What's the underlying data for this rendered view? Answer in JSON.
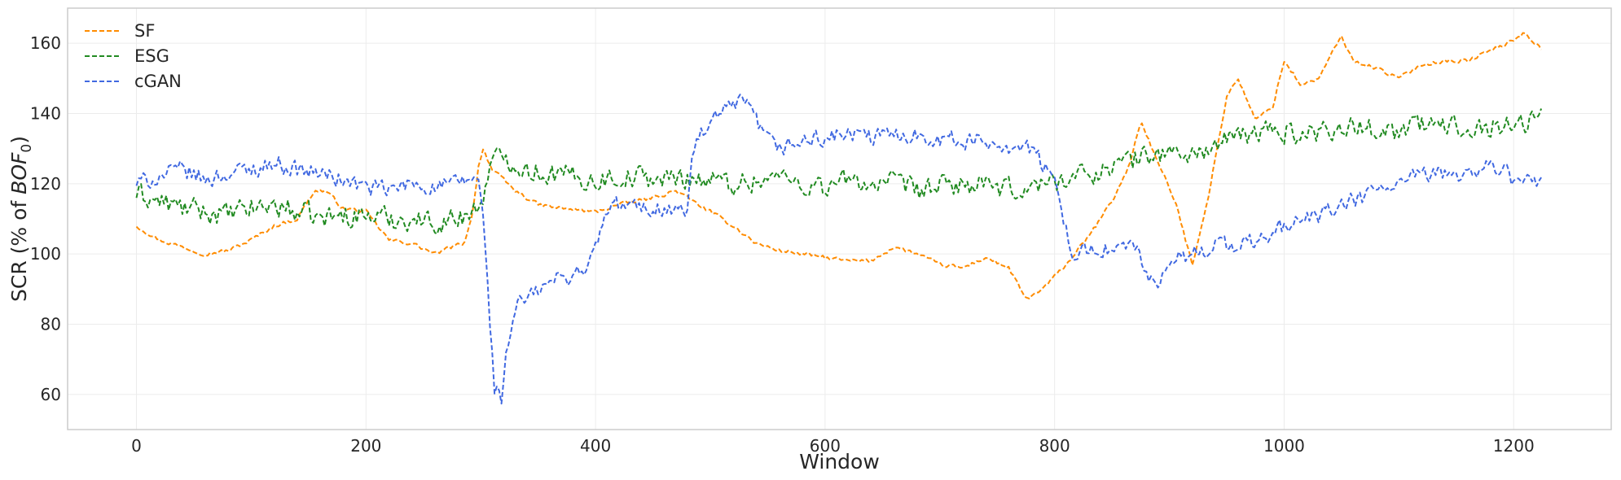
{
  "chart_data": {
    "type": "line",
    "title": "",
    "xlabel": "Window",
    "ylabel_parts": {
      "prefix": "SCR (% of ",
      "italic": "BOF",
      "subscript": "0",
      "suffix": ")"
    },
    "xlim": [
      -60,
      1285
    ],
    "ylim": [
      50,
      170
    ],
    "xticks": [
      0,
      200,
      400,
      600,
      800,
      1000,
      1200
    ],
    "yticks": [
      60,
      80,
      100,
      120,
      140,
      160
    ],
    "grid": true,
    "legend_position": "upper-left",
    "line_style": "dashed",
    "series": [
      {
        "name": "SF",
        "color": "#ff8c00",
        "x": [
          0,
          20,
          40,
          60,
          80,
          100,
          120,
          140,
          155,
          165,
          180,
          200,
          220,
          240,
          260,
          275,
          285,
          292,
          298,
          302,
          310,
          330,
          350,
          370,
          400,
          420,
          450,
          470,
          500,
          520,
          540,
          560,
          600,
          620,
          640,
          660,
          680,
          700,
          720,
          740,
          760,
          775,
          790,
          810,
          830,
          850,
          865,
          875,
          890,
          905,
          920,
          935,
          950,
          960,
          975,
          990,
          1000,
          1015,
          1030,
          1050,
          1060,
          1080,
          1100,
          1120,
          1140,
          1160,
          1180,
          1195,
          1210,
          1225
        ],
        "y": [
          108,
          104,
          102,
          100,
          101,
          104,
          108,
          110,
          118,
          118,
          113,
          112,
          104,
          103,
          100,
          102,
          103,
          110,
          125,
          130,
          124,
          118,
          114,
          113,
          112,
          114,
          116,
          118,
          112,
          108,
          103,
          101,
          99,
          98,
          98,
          102,
          100,
          97,
          96,
          99,
          96,
          87,
          90,
          97,
          105,
          115,
          125,
          138,
          126,
          115,
          97,
          118,
          145,
          150,
          138,
          142,
          155,
          148,
          150,
          162,
          155,
          153,
          150,
          154,
          155,
          155,
          158,
          160,
          163,
          158
        ]
      },
      {
        "name": "ESG",
        "color": "#228b22",
        "x": [
          0,
          20,
          40,
          60,
          80,
          100,
          120,
          140,
          160,
          180,
          200,
          220,
          240,
          260,
          280,
          290,
          298,
          305,
          310,
          320,
          340,
          360,
          380,
          400,
          420,
          440,
          460,
          480,
          500,
          520,
          540,
          560,
          580,
          600,
          620,
          640,
          660,
          680,
          700,
          720,
          740,
          760,
          780,
          800,
          820,
          840,
          860,
          880,
          900,
          920,
          940,
          960,
          980,
          1000,
          1020,
          1040,
          1060,
          1080,
          1100,
          1120,
          1140,
          1160,
          1180,
          1200,
          1225
        ],
        "y": [
          117,
          115,
          113,
          112,
          111,
          113,
          114,
          112,
          110,
          111,
          111,
          110,
          110,
          109,
          110,
          112,
          113,
          120,
          126,
          128,
          124,
          123,
          122,
          121,
          122,
          122,
          121,
          122,
          121,
          120,
          121,
          122,
          120,
          119,
          121,
          120,
          120,
          118,
          119,
          120,
          119,
          118,
          119,
          121,
          122,
          124,
          126,
          128,
          129,
          128,
          131,
          133,
          135,
          135,
          134,
          136,
          136,
          136,
          135,
          137,
          136,
          137,
          136,
          137,
          139
        ]
      },
      {
        "name": "cGAN",
        "color": "#4169e1",
        "x": [
          0,
          20,
          40,
          60,
          80,
          100,
          120,
          140,
          160,
          180,
          200,
          220,
          240,
          260,
          280,
          290,
          298,
          302,
          306,
          312,
          318,
          322,
          330,
          345,
          360,
          380,
          395,
          400,
          410,
          420,
          440,
          460,
          480,
          485,
          495,
          510,
          520,
          530,
          540,
          550,
          560,
          580,
          600,
          620,
          640,
          660,
          680,
          700,
          720,
          740,
          760,
          780,
          790,
          800,
          805,
          812,
          820,
          830,
          850,
          870,
          880,
          890,
          900,
          920,
          940,
          960,
          980,
          1000,
          1020,
          1040,
          1060,
          1080,
          1100,
          1120,
          1140,
          1160,
          1180,
          1190,
          1200,
          1215,
          1225
        ],
        "y": [
          120,
          122,
          124,
          121,
          123,
          124,
          126,
          124,
          123,
          121,
          119,
          118,
          120,
          119,
          120,
          121,
          122,
          110,
          90,
          62,
          59,
          70,
          85,
          88,
          92,
          94,
          97,
          102,
          112,
          114,
          113,
          113,
          112,
          130,
          135,
          140,
          142,
          143,
          138,
          132,
          130,
          132,
          133,
          134,
          133,
          134,
          134,
          133,
          132,
          132,
          131,
          130,
          125,
          120,
          115,
          105,
          98,
          102,
          101,
          102,
          95,
          88,
          98,
          100,
          103,
          102,
          104,
          108,
          110,
          112,
          115,
          118,
          120,
          122,
          123,
          123,
          125,
          124,
          121,
          120,
          122
        ]
      }
    ]
  }
}
